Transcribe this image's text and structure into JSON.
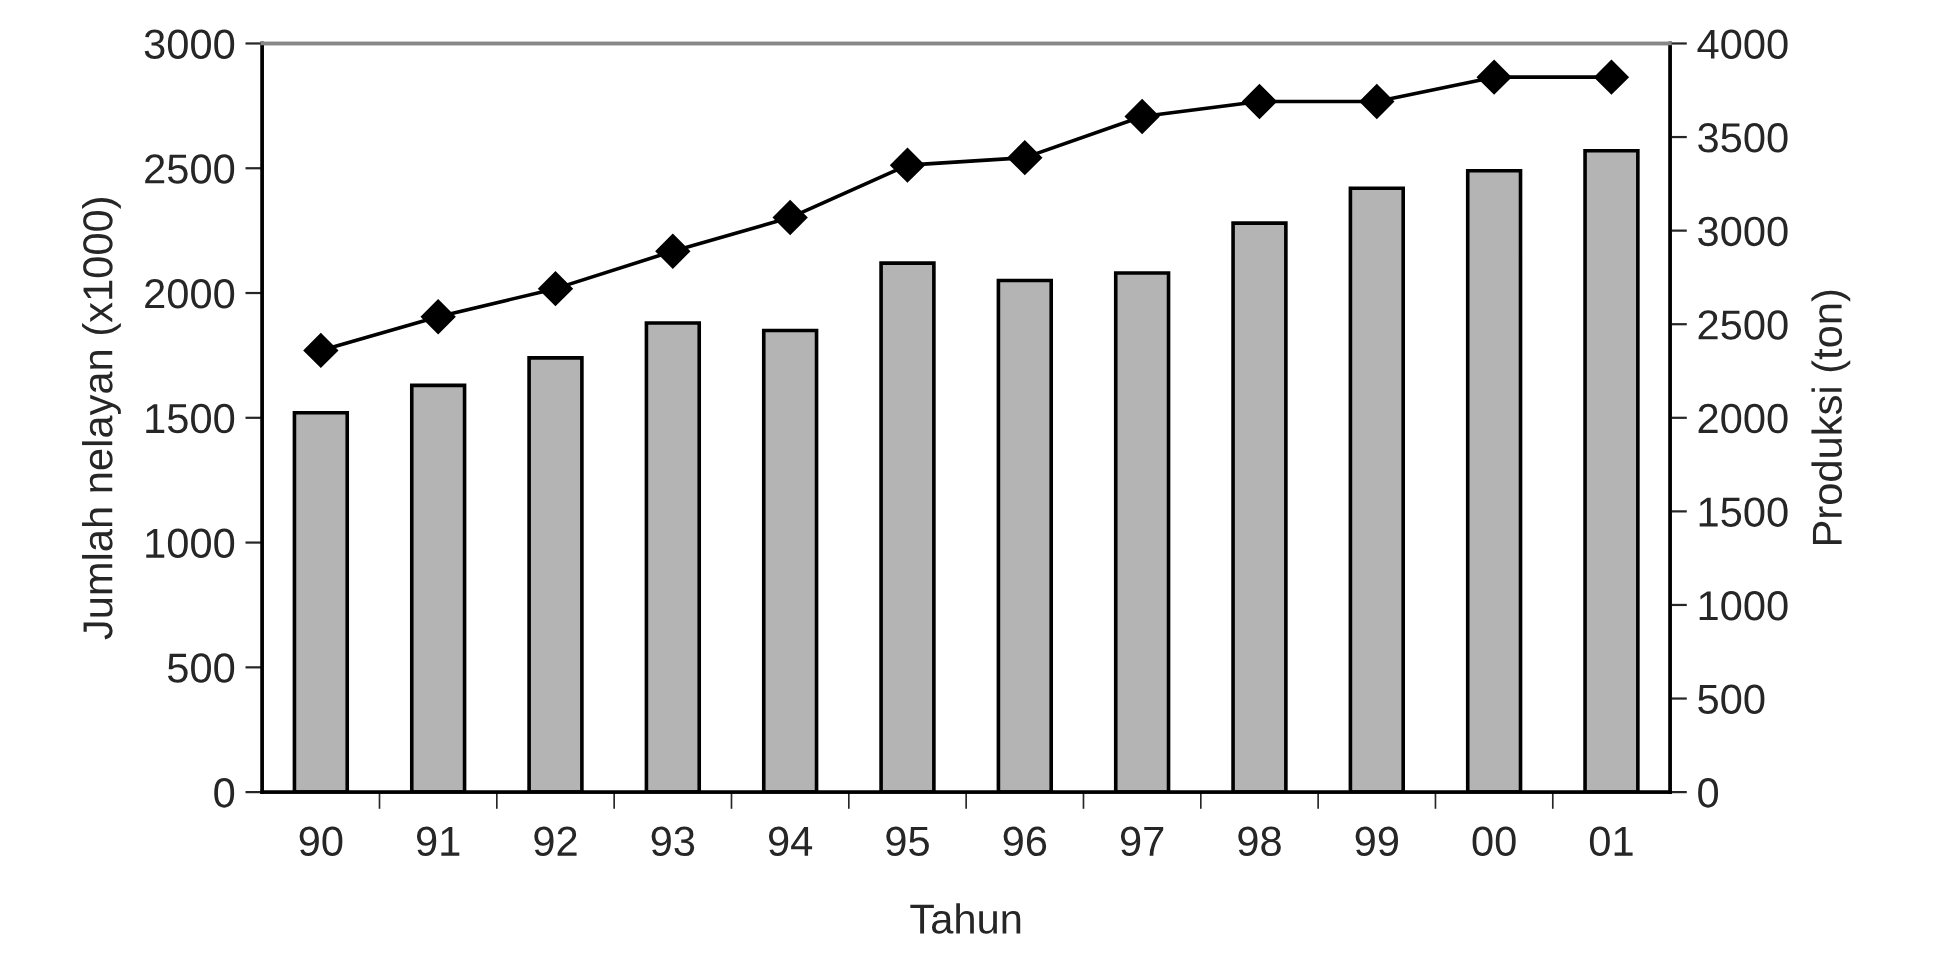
{
  "chart_data": {
    "type": "bar",
    "xlabel": "Tahun",
    "ylabel": "Jumlah nelayan (x1000)",
    "y2label": "Produksi (ton)",
    "categories": [
      "90",
      "91",
      "92",
      "93",
      "94",
      "95",
      "96",
      "97",
      "98",
      "99",
      "00",
      "01"
    ],
    "series": [
      {
        "color": "#b4b4b4",
        "values": [
          1520,
          1630,
          1740,
          1880,
          1850,
          2120,
          2050,
          2080,
          2280,
          2420,
          2490,
          2570
        ]
      },
      {
        "type": "line",
        "axis": "y2",
        "color": "#000000",
        "marker": "diamond",
        "values": [
          2360,
          2540,
          2690,
          2890,
          3070,
          3350,
          3390,
          3610,
          3690,
          3690,
          3820,
          3820
        ]
      }
    ],
    "ylim": [
      0,
      3000
    ],
    "yticks": [
      0,
      500,
      1000,
      1500,
      2000,
      2500,
      3000
    ],
    "y2lim": [
      0,
      4000
    ],
    "y2ticks": [
      0,
      500,
      1000,
      1500,
      2000,
      2500,
      3000,
      3500,
      4000
    ],
    "grid": false
  }
}
